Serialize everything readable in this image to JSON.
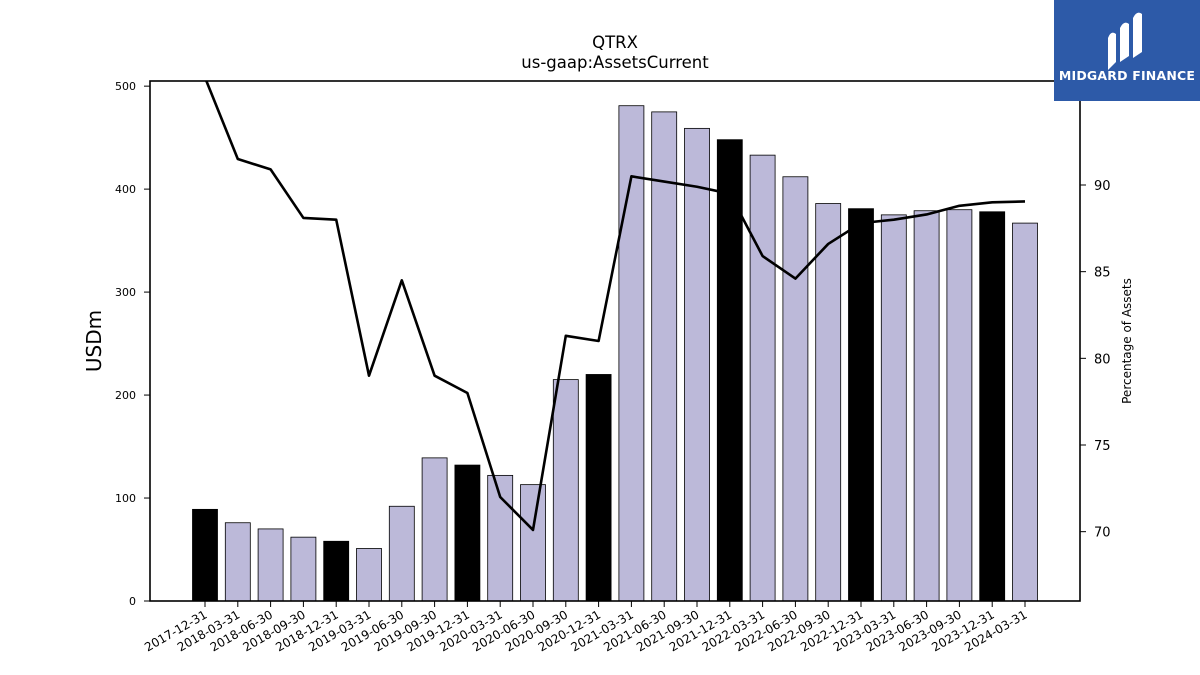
{
  "chart_data": {
    "type": "bar",
    "title": "QTRX",
    "subtitle": "us-gaap:AssetsCurrent",
    "ylabel": "USDm",
    "y2label": "Percentage of Assets",
    "ylim": [
      0,
      505
    ],
    "y2lim": [
      66.0,
      96.0
    ],
    "yticks": [
      0,
      100,
      200,
      300,
      400,
      500
    ],
    "y2ticks": [
      70,
      75,
      80,
      85,
      90
    ],
    "categories": [
      "2017-12-31",
      "2018-03-31",
      "2018-06-30",
      "2018-09-30",
      "2018-12-31",
      "2019-03-31",
      "2019-06-30",
      "2019-09-30",
      "2019-12-31",
      "2020-03-31",
      "2020-06-30",
      "2020-09-30",
      "2020-12-31",
      "2021-03-31",
      "2021-06-30",
      "2021-09-30",
      "2021-12-31",
      "2022-03-31",
      "2022-06-30",
      "2022-09-30",
      "2022-12-31",
      "2023-03-31",
      "2023-06-30",
      "2023-09-30",
      "2023-12-31",
      "2024-03-31"
    ],
    "values": [
      89,
      76,
      70,
      62,
      58,
      51,
      92,
      139,
      132,
      122,
      113,
      215,
      220,
      481,
      475,
      459,
      448,
      433,
      412,
      386,
      381,
      375,
      379,
      380,
      378,
      367
    ],
    "highlight": [
      true,
      false,
      false,
      false,
      true,
      false,
      false,
      false,
      true,
      false,
      false,
      false,
      true,
      false,
      false,
      false,
      true,
      false,
      false,
      false,
      true,
      false,
      false,
      false,
      true,
      false
    ],
    "line_series": {
      "axis": "right",
      "values": [
        96.2,
        91.5,
        90.9,
        88.1,
        88.0,
        79.0,
        84.5,
        79.0,
        78.0,
        72.0,
        70.1,
        81.3,
        81.0,
        90.5,
        90.2,
        89.9,
        89.5,
        85.9,
        84.6,
        86.6,
        87.8,
        88.0,
        88.3,
        88.8,
        89.0,
        89.05
      ]
    },
    "colors": {
      "bar": "#bcb9d9",
      "bar_highlight": "#000000",
      "line": "#000000",
      "edge": "#000000"
    },
    "grid": false
  },
  "logo": {
    "text": "MIDGARD FINANCE",
    "background": "#2d5aa8"
  }
}
